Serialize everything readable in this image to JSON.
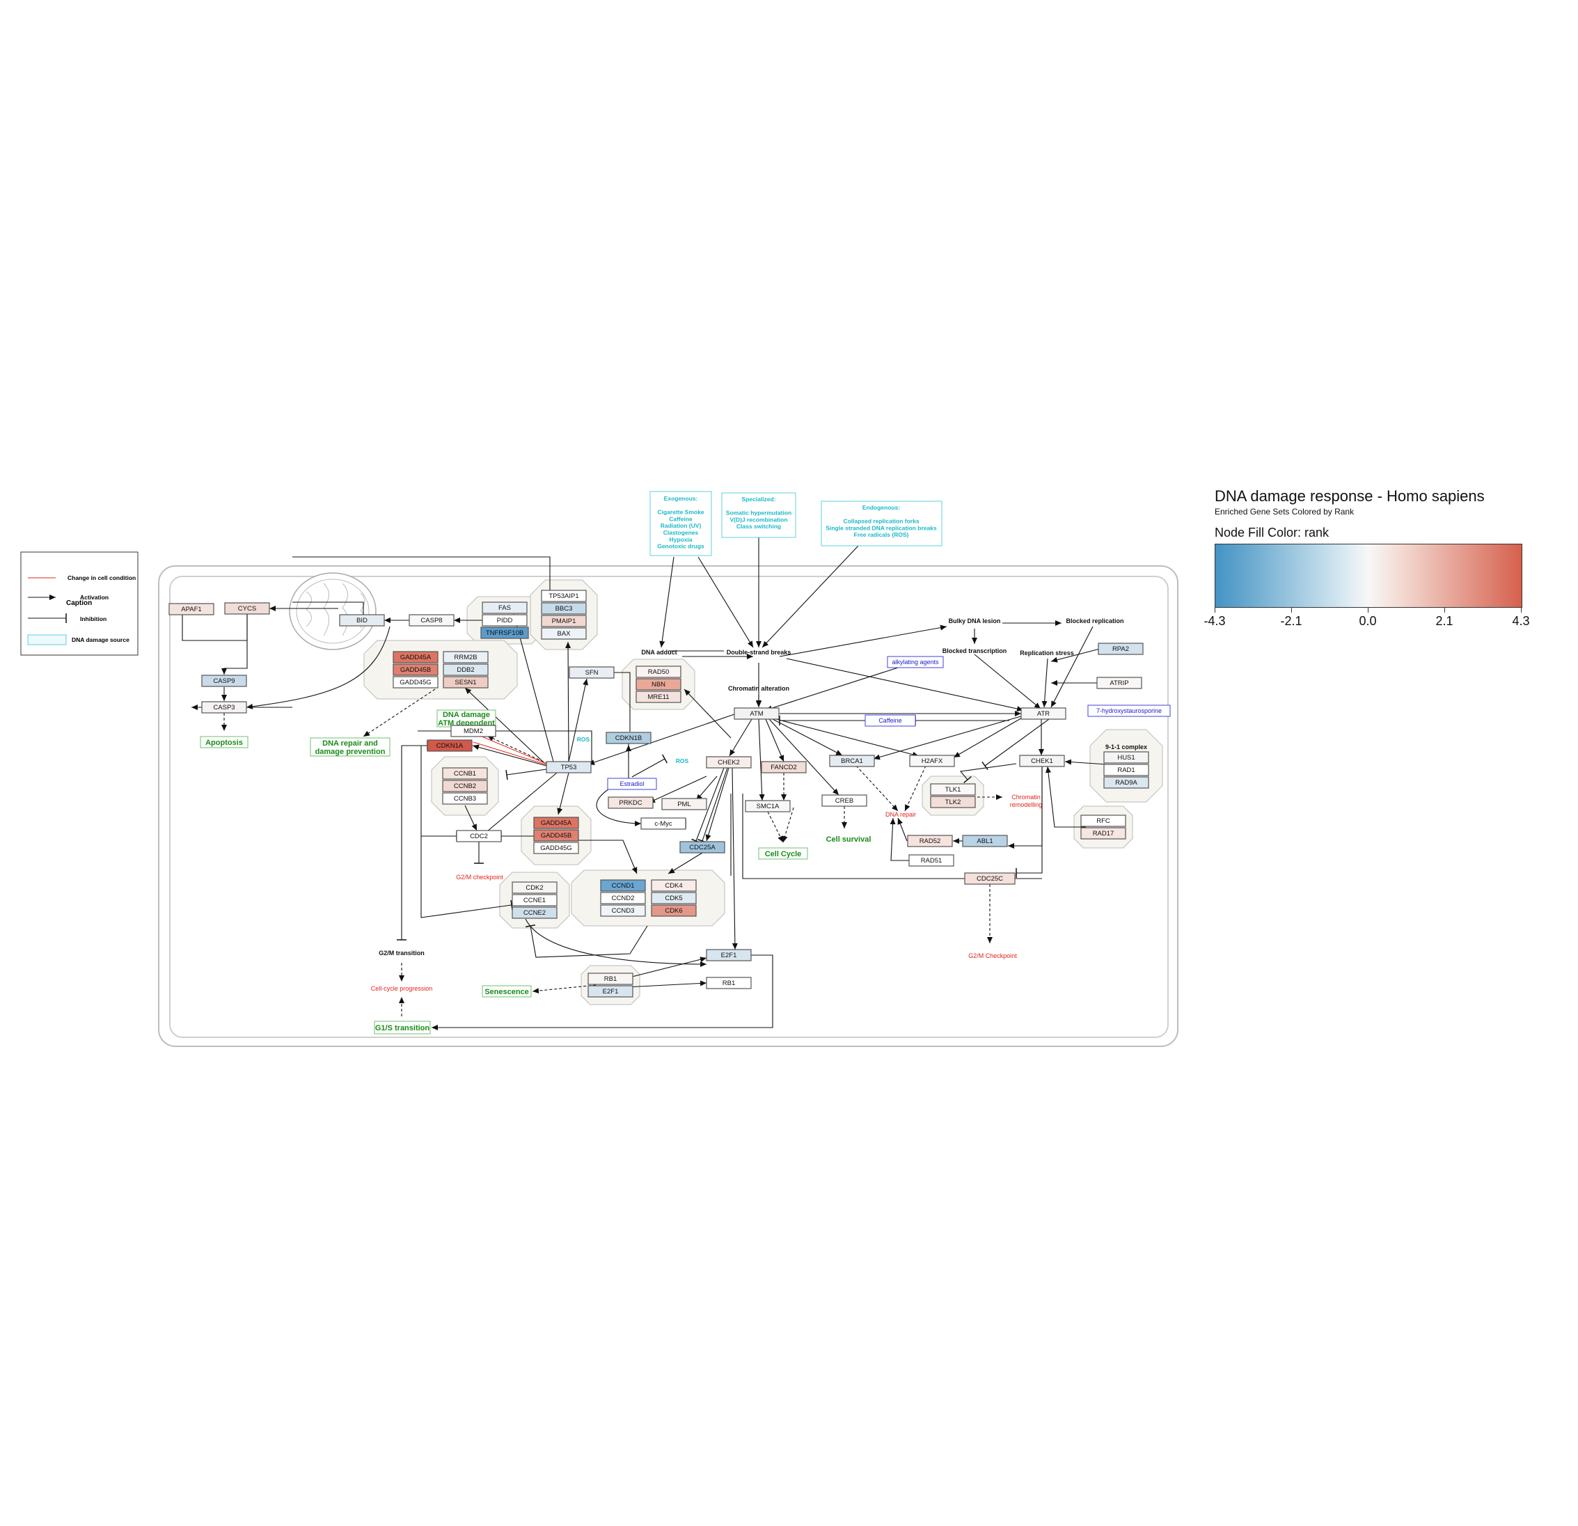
{
  "legend": {
    "title": "DNA damage response - Homo sapiens",
    "subtitle": "Enriched Gene Sets Colored by Rank",
    "fill_label": "Node Fill Color:  rank",
    "ticks": [
      "-4.3",
      "-2.1",
      "0.0",
      "2.1",
      "4.3"
    ],
    "gradient_colors": [
      "#4393c3",
      "#f7f7f7",
      "#d6604d"
    ]
  },
  "caption": {
    "title": "Caption",
    "items": [
      "Change in cell condition",
      "Activation",
      "Inhibition",
      "DNA damage source"
    ]
  },
  "sources": {
    "exogenous": [
      "Exogenous:",
      "",
      "Cigarette Smoke",
      "Caffeine",
      "Radiation (UV)",
      "Clastogenes",
      "Hypoxia",
      "Genotoxic drugs"
    ],
    "specialized": [
      "Specialized:",
      "",
      "Somatic hypermutation",
      "V(D)J recombination",
      "Class switching"
    ],
    "endogenous": [
      "Endogenous:",
      "",
      "Collapsed replication forks",
      "Single stranded DNA replication breaks",
      "Free radicals (ROS)"
    ]
  },
  "genes": {
    "APAF1": {
      "label": "APAF1",
      "color": "#f4e4e0"
    },
    "CYCS": {
      "label": "CYCS",
      "color": "#f1ddd7"
    },
    "BID": {
      "label": "BID",
      "color": "#e4ecf2"
    },
    "CASP8": {
      "label": "CASP8",
      "color": "#f7f7f7"
    },
    "CASP9": {
      "label": "CASP9",
      "color": "#c8dbea"
    },
    "CASP3": {
      "label": "CASP3",
      "color": "#f5f2f1"
    },
    "FAS": {
      "label": "FAS",
      "color": "#e5eef5"
    },
    "PIDD": {
      "label": "PIDD",
      "color": "#ffffff"
    },
    "TNFRSF10B": {
      "label": "TNFRSF10B",
      "color": "#5b9ccb"
    },
    "TP53AIP1": {
      "label": "TP53AIP1",
      "color": "#ffffff"
    },
    "BBC3": {
      "label": "BBC3",
      "color": "#c6dbea"
    },
    "PMAIP1": {
      "label": "PMAIP1",
      "color": "#f1d9d2"
    },
    "BAX": {
      "label": "BAX",
      "color": "#eef3f7"
    },
    "GADD45A_1": {
      "label": "GADD45A",
      "color": "#dd7463"
    },
    "GADD45B_1": {
      "label": "GADD45B",
      "color": "#e08071"
    },
    "GADD45G_1": {
      "label": "GADD45G",
      "color": "#ffffff"
    },
    "RRM2B": {
      "label": "RRM2B",
      "color": "#e9f0f6"
    },
    "DDB2": {
      "label": "DDB2",
      "color": "#dce8f1"
    },
    "SESN1": {
      "label": "SESN1",
      "color": "#efcdc4"
    },
    "SFN": {
      "label": "SFN",
      "color": "#e8eef4"
    },
    "MDM2": {
      "label": "MDM2",
      "color": "#ffffff"
    },
    "CDKN1A": {
      "label": "CDKN1A",
      "color": "#d2584a"
    },
    "TP53": {
      "label": "TP53",
      "color": "#dee8f1"
    },
    "CDKN1B": {
      "label": "CDKN1B",
      "color": "#b0cde2"
    },
    "CCNB1": {
      "label": "CCNB1",
      "color": "#f5e3de"
    },
    "CCNB2": {
      "label": "CCNB2",
      "color": "#f1d9d2"
    },
    "CCNB3": {
      "label": "CCNB3",
      "color": "#ffffff"
    },
    "CDC2": {
      "label": "CDC2",
      "color": "#ffffff"
    },
    "GADD45A_2": {
      "label": "GADD45A",
      "color": "#dd7463"
    },
    "GADD45B_2": {
      "label": "GADD45B",
      "color": "#e08071"
    },
    "GADD45G_2": {
      "label": "GADD45G",
      "color": "#ffffff"
    },
    "RAD50": {
      "label": "RAD50",
      "color": "#faf3f1"
    },
    "NBN": {
      "label": "NBN",
      "color": "#e9a898"
    },
    "MRE11": {
      "label": "MRE11",
      "color": "#f4e2dd"
    },
    "ATM": {
      "label": "ATM",
      "color": "#f2f2f2"
    },
    "ATR": {
      "label": "ATR",
      "color": "#f7f7f7"
    },
    "RPA2": {
      "label": "RPA2",
      "color": "#d3e2ed"
    },
    "ATRIP": {
      "label": "ATRIP",
      "color": "#faf6f5"
    },
    "CHEK2": {
      "label": "CHEK2",
      "color": "#f7eeeb"
    },
    "FANCD2": {
      "label": "FANCD2",
      "color": "#f2ddd7"
    },
    "BRCA1": {
      "label": "BRCA1",
      "color": "#e4ecf2"
    },
    "H2AFX": {
      "label": "H2AFX",
      "color": "#f7f7f7"
    },
    "CHEK1": {
      "label": "CHEK1",
      "color": "#f4f4f4"
    },
    "HUS1": {
      "label": "HUS1",
      "color": "#f4f4f4"
    },
    "RAD1": {
      "label": "RAD1",
      "color": "#ffffff"
    },
    "RAD9A": {
      "label": "RAD9A",
      "color": "#dbe7f0"
    },
    "TLK1": {
      "label": "TLK1",
      "color": "#fbf7f6"
    },
    "TLK2": {
      "label": "TLK2",
      "color": "#f2ddd7"
    },
    "PRKDC": {
      "label": "PRKDC",
      "color": "#f6e6e2"
    },
    "PML": {
      "label": "PML",
      "color": "#f7f1ef"
    },
    "SMC1A": {
      "label": "SMC1A",
      "color": "#f7f7f7"
    },
    "CREB": {
      "label": "CREB",
      "color": "#ffffff"
    },
    "cMyc": {
      "label": "c-Myc",
      "color": "#ffffff"
    },
    "CDC25A": {
      "label": "CDC25A",
      "color": "#9fc3dd"
    },
    "RAD52": {
      "label": "RAD52",
      "color": "#f6e3de"
    },
    "ABL1": {
      "label": "ABL1",
      "color": "#b9d3e6"
    },
    "RAD51": {
      "label": "RAD51",
      "color": "#ffffff"
    },
    "RFC": {
      "label": "RFC",
      "color": "#ffffff"
    },
    "RAD17": {
      "label": "RAD17",
      "color": "#f6e5e1"
    },
    "CDC25C": {
      "label": "CDC25C",
      "color": "#f5e1dc"
    },
    "CDK2": {
      "label": "CDK2",
      "color": "#f7f3f2"
    },
    "CCNE1": {
      "label": "CCNE1",
      "color": "#ffffff"
    },
    "CCNE2": {
      "label": "CCNE2",
      "color": "#cfe0ec"
    },
    "CCND1": {
      "label": "CCND1",
      "color": "#6aa6d1"
    },
    "CCND2": {
      "label": "CCND2",
      "color": "#ffffff"
    },
    "CCND3": {
      "label": "CCND3",
      "color": "#eff4f8"
    },
    "CDK4": {
      "label": "CDK4",
      "color": "#f7ece9"
    },
    "CDK5": {
      "label": "CDK5",
      "color": "#dfeaf2"
    },
    "CDK6": {
      "label": "CDK6",
      "color": "#e3988a"
    },
    "E2F1_a": {
      "label": "E2F1",
      "color": "#d7e5ef"
    },
    "RB1_a": {
      "label": "RB1",
      "color": "#f7f4f3"
    },
    "E2F1_b": {
      "label": "E2F1",
      "color": "#d7e5ef"
    },
    "RB1_b": {
      "label": "RB1",
      "color": "#ffffff"
    }
  },
  "labels": {
    "dna_adduct": "DNA adduct",
    "dsb": "Double-strand breaks",
    "chromatin_alteration": "Chromatin alteration",
    "bulky": "Bulky DNA lesion",
    "blocked_replication": "Blocked replication",
    "blocked_transcription": "Blocked transcription",
    "replication_stress": "Replication stress",
    "complex_911": "9-1-1 complex",
    "g2m_transition": "G2/M transition"
  },
  "outcomes": {
    "apoptosis": "Apoptosis",
    "dna_repair_prev_1": "DNA repair and",
    "dna_repair_prev_2": "damage prevention",
    "atm_dep_1": "DNA damage",
    "atm_dep_2": "ATM dependent",
    "cell_cycle": "Cell Cycle",
    "cell_survival": "Cell survival",
    "senescence": "Senescence",
    "g1s": "G1/S transition"
  },
  "red_labels": {
    "g2m_checkpoint": "G2/M checkpoint",
    "dna_repair": "DNA repair",
    "chromatin_remodelling_1": "Chromatin",
    "chromatin_remodelling_2": "remodelling",
    "g2m_checkpoint_2": "G2/M Checkpoint",
    "cell_cycle_progression": "Cell-cycle progression"
  },
  "chemicals": {
    "alkylating": "alkylating agents",
    "caffeine": "Caffeine",
    "hydroxy": "7-hydroxystaurosporine",
    "estradiol": "Estradiol",
    "ros_1": "ROS",
    "ros_2": "ROS"
  }
}
